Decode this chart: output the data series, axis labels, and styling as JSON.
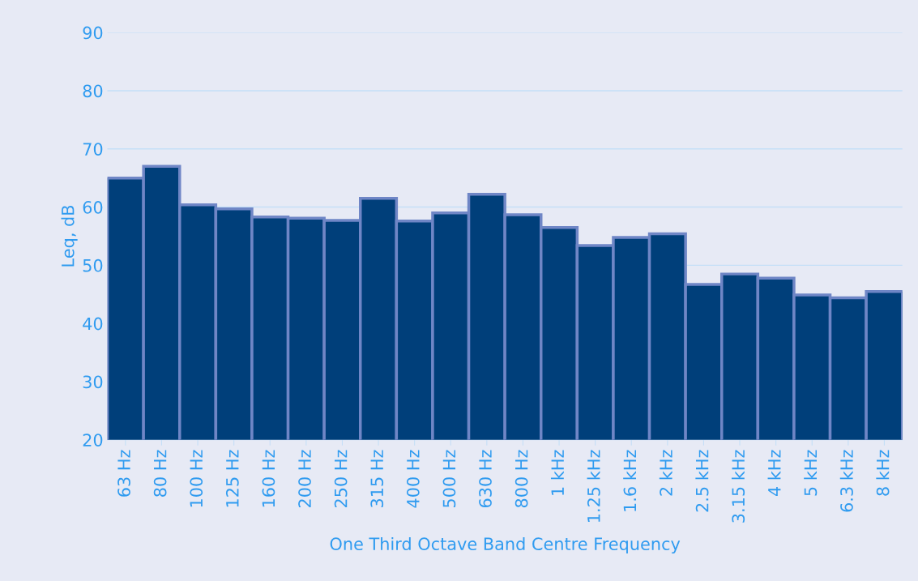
{
  "chart_data": {
    "type": "bar",
    "xlabel": "One Third Octave Band Centre Frequency",
    "ylabel": "Leq, dB",
    "categories": [
      "63 Hz",
      "80 Hz",
      "100 Hz",
      "125 Hz",
      "160 Hz",
      "200 Hz",
      "250 Hz",
      "315 Hz",
      "400 Hz",
      "500 Hz",
      "630 Hz",
      "800 Hz",
      "1 kHz",
      "1.25 kHz",
      "1.6 kHz",
      "2 kHz",
      "2.5 kHz",
      "3.15 kHz",
      "4 kHz",
      "5 kHz",
      "6.3 kHz",
      "8 kHz"
    ],
    "values": [
      65,
      67,
      60.4,
      59.7,
      58.3,
      58.1,
      57.7,
      61.5,
      57.6,
      59.0,
      62.2,
      58.7,
      56.5,
      53.4,
      54.8,
      55.4,
      46.7,
      48.5,
      47.8,
      44.9,
      44.4,
      45.5
    ],
    "color": "#003f7a",
    "ylim": [
      20,
      90
    ],
    "yticks": [
      20,
      30,
      40,
      50,
      60,
      70,
      80,
      90
    ],
    "grid": "y"
  }
}
